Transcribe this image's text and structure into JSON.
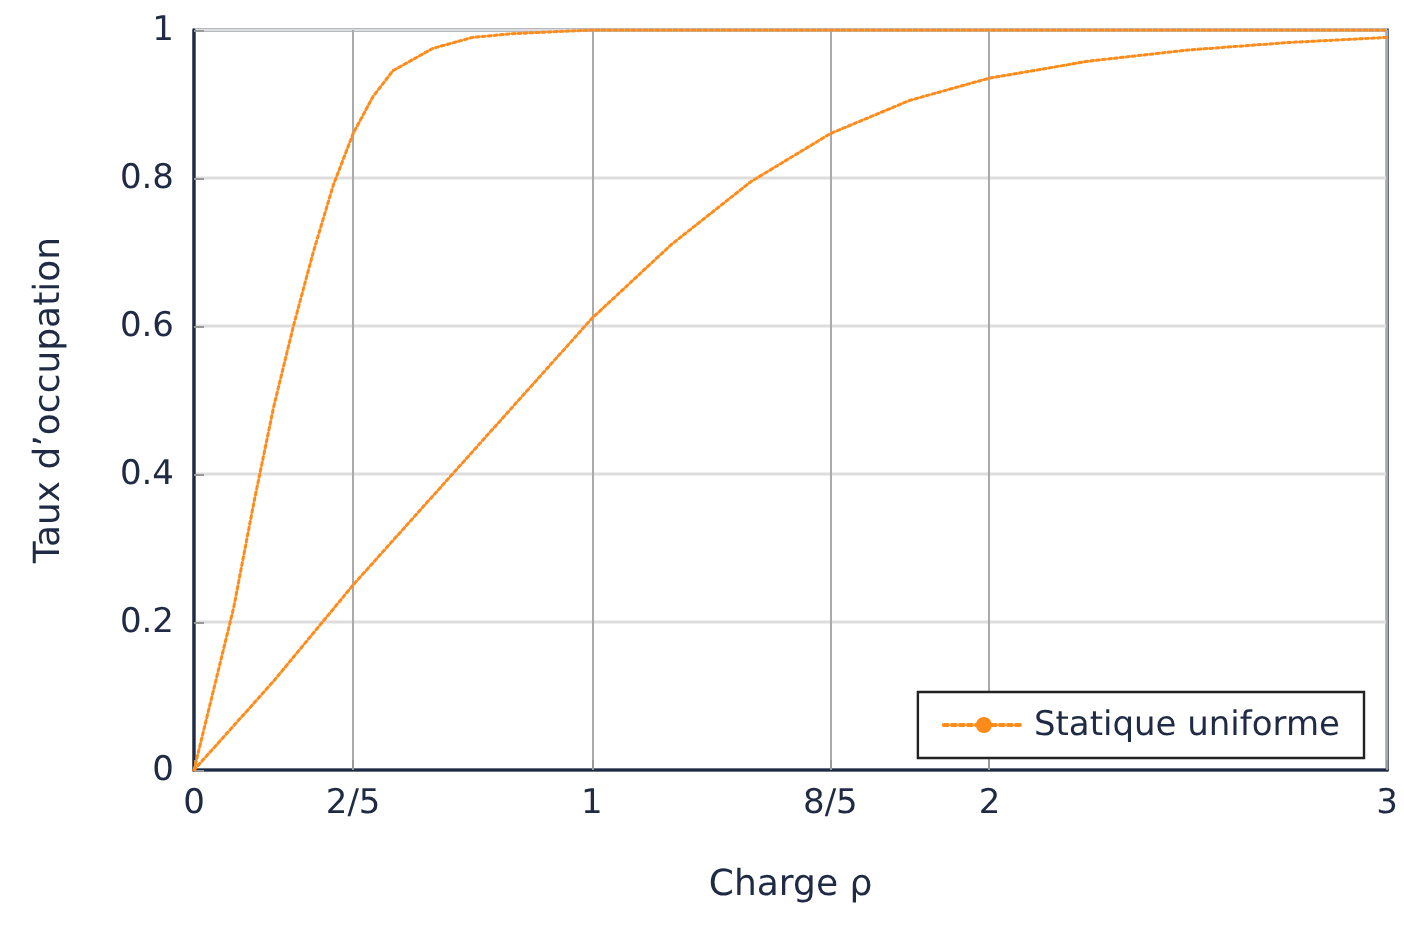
{
  "chart_data": {
    "type": "line",
    "xlabel": "Charge ρ",
    "ylabel": "Taux d’occupation",
    "xlim": [
      0,
      3
    ],
    "xticks": [
      0,
      {
        "value": 0.4,
        "label": "2/5"
      },
      1,
      {
        "value": 1.6,
        "label": "8/5"
      },
      2,
      3
    ],
    "ylim": [
      0,
      1
    ],
    "yticks": [
      0,
      0.2,
      0.4,
      0.6,
      0.8,
      1
    ],
    "grid": true,
    "legend": "bottom right",
    "marker": "none",
    "line_style": "dotted",
    "series": [
      {
        "name": "Statique uniforme",
        "color": "#ff8c1a",
        "x": [
          0,
          0.2,
          0.4,
          0.6,
          0.8,
          1,
          1.2,
          1.4,
          1.6,
          1.8,
          2,
          2.25,
          2.5,
          2.75,
          3
        ],
        "values": [
          0,
          0.12,
          0.25,
          0.37,
          0.49,
          0.61,
          0.71,
          0.795,
          0.86,
          0.905,
          0.935,
          0.958,
          0.973,
          0.983,
          0.99
        ]
      },
      {
        "color": "#ff8c1a",
        "x": [
          0,
          0.05,
          0.1,
          0.15,
          0.2,
          0.25,
          0.3,
          0.35,
          0.4,
          0.45,
          0.5,
          0.6,
          0.7,
          0.8,
          1,
          3
        ],
        "values": [
          0,
          0.11,
          0.22,
          0.36,
          0.49,
          0.6,
          0.7,
          0.79,
          0.86,
          0.91,
          0.945,
          0.975,
          0.99,
          0.995,
          1,
          1
        ]
      }
    ]
  }
}
